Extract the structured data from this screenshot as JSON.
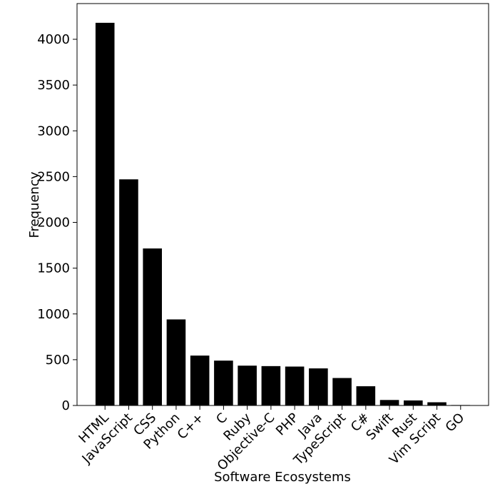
{
  "chart_data": {
    "type": "bar",
    "xlabel": "Software Ecosystems",
    "ylabel": "Frequency",
    "categories": [
      "HTML",
      "JavaScript",
      "CSS",
      "Python",
      "C++",
      "C",
      "Ruby",
      "Objective-C",
      "PHP",
      "Java",
      "TypeScript",
      "C#",
      "Swift",
      "Rust",
      "Vim Script",
      "GO"
    ],
    "values": [
      4180,
      2470,
      1715,
      940,
      545,
      490,
      435,
      430,
      425,
      405,
      300,
      210,
      60,
      55,
      35,
      5
    ],
    "color": "#000000",
    "ylim": [
      0,
      4390
    ],
    "yticks": [
      0,
      500,
      1000,
      1500,
      2000,
      2500,
      3000,
      3500,
      4000
    ],
    "grid": false
  }
}
